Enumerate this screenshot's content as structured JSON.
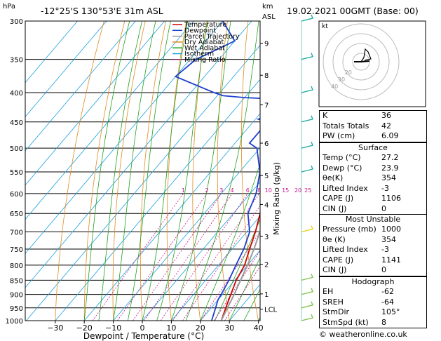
{
  "header": {
    "hpa": "hPa",
    "location": "-12°25'S  130°53'E  31m  ASL",
    "km_top": "km",
    "km_bottom": "ASL",
    "datetime": "19.02.2021  00GMT  (Base: 00)"
  },
  "chart_data": {
    "type": "skew-t log-p",
    "xlabel": "Dewpoint / Temperature (°C)",
    "ylabel_right": "Mixing Ratio (g/kg)",
    "y_axis_unit": "hPa",
    "pressure_ticks": [
      300,
      350,
      400,
      450,
      500,
      550,
      600,
      650,
      700,
      750,
      800,
      850,
      900,
      950,
      1000
    ],
    "temperature_ticks": [
      -30,
      -20,
      -10,
      0,
      10,
      20,
      30,
      40
    ],
    "km_ticks": [
      {
        "km": "9",
        "p": 328
      },
      {
        "km": "8",
        "p": 373
      },
      {
        "km": "7",
        "p": 420
      },
      {
        "km": "6",
        "p": 490
      },
      {
        "km": "5",
        "p": 558
      },
      {
        "km": "4",
        "p": 627
      },
      {
        "km": "3",
        "p": 713
      },
      {
        "km": "2",
        "p": 797
      },
      {
        "km": "1",
        "p": 898
      },
      {
        "km": "LCL",
        "p": 955
      }
    ],
    "mixing_ratio_labels": [
      {
        "label": "1",
        "w": 1
      },
      {
        "label": "2",
        "w": 2
      },
      {
        "label": "3",
        "w": 3
      },
      {
        "label": "4",
        "w": 4
      },
      {
        "label": "6",
        "w": 6
      },
      {
        "label": "8",
        "w": 8
      },
      {
        "label": "10",
        "w": 10
      },
      {
        "label": "15",
        "w": 15
      },
      {
        "label": "20",
        "w": 20
      },
      {
        "label": "25",
        "w": 25
      }
    ],
    "legend": [
      "Temperature",
      "Dewpoint",
      "Parcel Trajectory",
      "Dry Adiabat",
      "Wet Adiabat",
      "Isotherm",
      "Mixing Ratio"
    ],
    "series": [
      {
        "name": "Temperature",
        "color": "#d00000",
        "profile": [
          [
            1000,
            27.2
          ],
          [
            950,
            25
          ],
          [
            900,
            22.8
          ],
          [
            850,
            20.5
          ],
          [
            800,
            19
          ],
          [
            750,
            16
          ],
          [
            700,
            13
          ],
          [
            650,
            9.2
          ],
          [
            600,
            5.8
          ],
          [
            550,
            1.5
          ],
          [
            500,
            -3.5
          ],
          [
            470,
            -8
          ],
          [
            450,
            -11.5
          ],
          [
            430,
            -15
          ],
          [
            400,
            -18
          ],
          [
            380,
            -21
          ],
          [
            360,
            -25
          ]
        ]
      },
      {
        "name": "Dewpoint",
        "color": "#1d3fcf",
        "profile": [
          [
            1000,
            23.9
          ],
          [
            950,
            21.5
          ],
          [
            920,
            20
          ],
          [
            900,
            19.5
          ],
          [
            850,
            18
          ],
          [
            800,
            16
          ],
          [
            750,
            14
          ],
          [
            700,
            11
          ],
          [
            650,
            5
          ],
          [
            600,
            2
          ],
          [
            550,
            -3
          ],
          [
            500,
            -11
          ],
          [
            490,
            -15
          ],
          [
            450,
            -15
          ],
          [
            445,
            -19
          ],
          [
            440,
            -17
          ],
          [
            425,
            -18
          ],
          [
            420,
            -19
          ],
          [
            410,
            -21
          ],
          [
            408,
            -30
          ],
          [
            405,
            -38
          ],
          [
            400,
            -42
          ],
          [
            375,
            -60
          ],
          [
            350,
            -58
          ],
          [
            325,
            -50
          ],
          [
            300,
            -60
          ]
        ]
      },
      {
        "name": "Parcel Trajectory",
        "color": "#9a9a9a",
        "profile": [
          [
            1000,
            27.2
          ],
          [
            950,
            25.6
          ],
          [
            900,
            24
          ],
          [
            850,
            22
          ],
          [
            800,
            20
          ],
          [
            750,
            17.5
          ],
          [
            700,
            14.5
          ],
          [
            650,
            11.5
          ],
          [
            600,
            8
          ],
          [
            550,
            4
          ],
          [
            500,
            -0.5
          ],
          [
            450,
            -6
          ],
          [
            400,
            -12
          ],
          [
            350,
            -20
          ]
        ]
      }
    ],
    "hodograph": {
      "label": "kt",
      "ring_labels": [
        "40",
        "30",
        "20"
      ]
    },
    "colors": {
      "temperature": "#d00000",
      "dewpoint": "#1d3fcf",
      "parcel": "#9a9a9a",
      "dry_adiabat": "#e08a20",
      "wet_adiabat": "#22a022",
      "isotherm": "#1aa0e0",
      "mixing_ratio": "#c8148c",
      "wind": "#16a8a0"
    }
  },
  "indices": [
    {
      "label": "K",
      "value": "36"
    },
    {
      "label": "Totals Totals",
      "value": "42"
    },
    {
      "label": "PW (cm)",
      "value": "6.09"
    }
  ],
  "surface": {
    "title": "Surface",
    "rows": [
      {
        "label": "Temp (°C)",
        "value": "27.2"
      },
      {
        "label": "Dewp (°C)",
        "value": "23.9"
      },
      {
        "label": "θe(K)",
        "value": "354"
      },
      {
        "label": "Lifted Index",
        "value": "-3"
      },
      {
        "label": "CAPE (J)",
        "value": "1106"
      },
      {
        "label": "CIN (J)",
        "value": "0"
      }
    ]
  },
  "most_unstable": {
    "title": "Most Unstable",
    "rows": [
      {
        "label": "Pressure (mb)",
        "value": "1000"
      },
      {
        "label": "θe (K)",
        "value": "354"
      },
      {
        "label": "Lifted Index",
        "value": "-3"
      },
      {
        "label": "CAPE (J)",
        "value": "1141"
      },
      {
        "label": "CIN (J)",
        "value": "0"
      }
    ]
  },
  "hodograph_table": {
    "title": "Hodograph",
    "rows": [
      {
        "label": "EH",
        "value": "-62"
      },
      {
        "label": "SREH",
        "value": "-64"
      },
      {
        "label": "StmDir",
        "value": "105°"
      },
      {
        "label": "StmSpd (kt)",
        "value": "8"
      }
    ]
  },
  "copyright": "© weatheronline.co.uk"
}
